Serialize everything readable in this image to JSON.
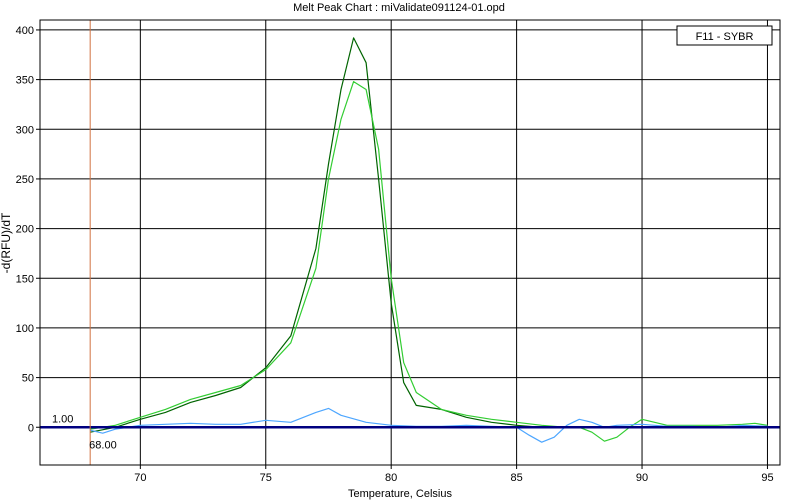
{
  "chart_data": {
    "type": "line",
    "title": "Melt Peak Chart : miValidate091124-01.opd",
    "xlabel": "Temperature, Celsius",
    "ylabel": "-d(RFU)/dT",
    "xlim": [
      66,
      95.5
    ],
    "ylim": [
      -38,
      410
    ],
    "x_ticks": [
      70,
      75,
      80,
      85,
      90,
      95
    ],
    "y_ticks": [
      0,
      50,
      100,
      150,
      200,
      250,
      300,
      350,
      400
    ],
    "grid": true,
    "legend": {
      "label": "F11 - SYBR",
      "position": "top-right"
    },
    "threshold": {
      "value": 0,
      "label": "1.00",
      "color": "#000080"
    },
    "cursor": {
      "x": 68,
      "label": "68.00",
      "color": "#d07040"
    },
    "series": [
      {
        "color": "#006400",
        "x": [
          68,
          69,
          70,
          71,
          72,
          73,
          74,
          75,
          76,
          77,
          77.5,
          78,
          78.5,
          79,
          79.5,
          80,
          80.5,
          81,
          82,
          83,
          84,
          85,
          86,
          87,
          88,
          89,
          90,
          91,
          92,
          93,
          94,
          95
        ],
        "y": [
          -5,
          0,
          8,
          15,
          25,
          32,
          40,
          60,
          92,
          180,
          265,
          340,
          392,
          367,
          250,
          125,
          45,
          22,
          18,
          10,
          5,
          2,
          0,
          0,
          0,
          0,
          0,
          0,
          0,
          0,
          0,
          0
        ]
      },
      {
        "color": "#32cd32",
        "x": [
          68,
          69,
          70,
          71,
          72,
          73,
          74,
          75,
          76,
          77,
          77.5,
          78,
          78.5,
          79,
          79.5,
          80,
          80.5,
          81,
          82,
          83,
          84,
          85,
          86,
          87,
          87.5,
          88,
          88.5,
          89,
          89.5,
          90,
          90.5,
          91,
          92,
          93,
          94,
          94.5,
          95
        ],
        "y": [
          -2,
          2,
          10,
          18,
          28,
          35,
          42,
          58,
          85,
          160,
          250,
          310,
          348,
          340,
          280,
          150,
          65,
          35,
          18,
          12,
          8,
          5,
          2,
          0,
          0,
          -5,
          -14,
          -10,
          0,
          8,
          5,
          2,
          2,
          2,
          3,
          4,
          2
        ]
      },
      {
        "color": "#4da6ff",
        "x": [
          68,
          68.5,
          69,
          70,
          71,
          72,
          73,
          74,
          75,
          76,
          77,
          77.5,
          78,
          79,
          80,
          81,
          82,
          83,
          84,
          85,
          85.5,
          86,
          86.5,
          87,
          87.5,
          88,
          88.5,
          89,
          90,
          91,
          92,
          93,
          94,
          95
        ],
        "y": [
          -3,
          -6,
          -2,
          2,
          3,
          4,
          3,
          3,
          7,
          5,
          15,
          19,
          12,
          5,
          2,
          1,
          1,
          2,
          1,
          0,
          -8,
          -15,
          -10,
          2,
          8,
          5,
          0,
          2,
          3,
          1,
          1,
          0,
          2,
          1
        ]
      }
    ]
  }
}
